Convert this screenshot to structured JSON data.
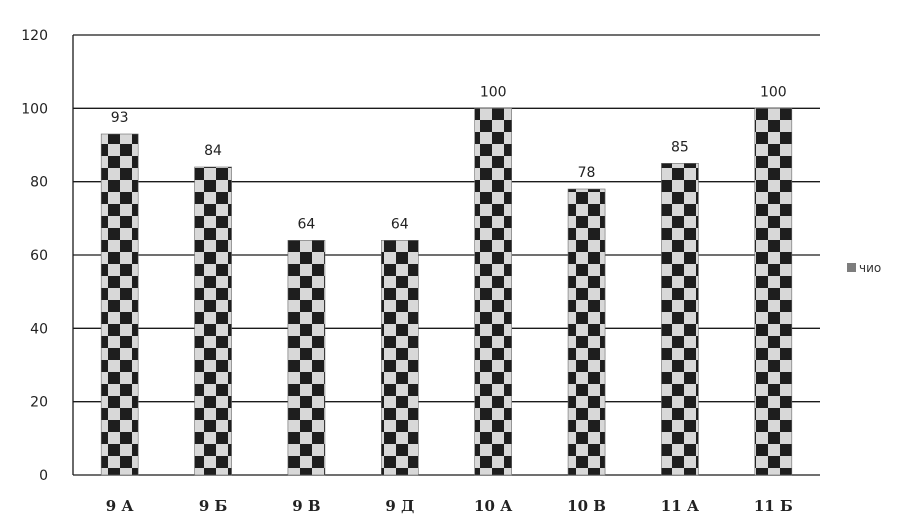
{
  "chart_data": {
    "type": "bar",
    "categories": [
      "9 А",
      "9 Б",
      "9 В",
      "9 Д",
      "10 А",
      "10 В",
      "11 А",
      "11 Б"
    ],
    "series": [
      {
        "name": "чио",
        "values": [
          93,
          84,
          64,
          64,
          100,
          78,
          85,
          100
        ]
      }
    ],
    "data_labels": [
      "93",
      "84",
      "64",
      "64",
      "100",
      "78",
      "85",
      "100"
    ],
    "y_ticks": [
      "0",
      "20",
      "40",
      "60",
      "80",
      "100",
      "120"
    ],
    "ylim": [
      0,
      120
    ],
    "grid": true,
    "legend": {
      "position": "right",
      "entries": [
        "чио"
      ]
    },
    "title": "",
    "xlabel": "",
    "ylabel": "",
    "colors": {
      "bar": "#7d7d7d",
      "check_dark": "#1e1e1e",
      "check_light": "#d8d8d8",
      "grid": "#1a1a1a",
      "axis": "#1a1a1a"
    }
  }
}
